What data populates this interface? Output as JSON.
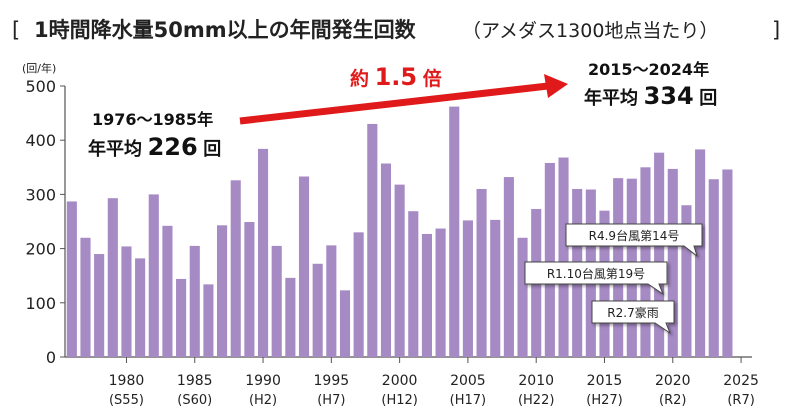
{
  "title": {
    "open_bracket": "[",
    "main": "1時間降水量50mm以上の年間発生回数",
    "sub": "（アメダス1300地点当たり）",
    "close_bracket": "]"
  },
  "chart_data": {
    "type": "bar",
    "title": "1時間降水量50mm以上の年間発生回数（アメダス1300地点当たり）",
    "ylabel": "(回/年)",
    "ylim": [
      0,
      500
    ],
    "yticks": [
      0,
      100,
      200,
      300,
      400,
      500
    ],
    "xlim": [
      1975.5,
      2025.8
    ],
    "xticks": [
      {
        "year": 1980,
        "era": "(S55)"
      },
      {
        "year": 1985,
        "era": "(S60)"
      },
      {
        "year": 1990,
        "era": "(H2)"
      },
      {
        "year": 1995,
        "era": "(H7)"
      },
      {
        "year": 2000,
        "era": "(H12)"
      },
      {
        "year": 2005,
        "era": "(H17)"
      },
      {
        "year": 2010,
        "era": "(H22)"
      },
      {
        "year": 2015,
        "era": "(H27)"
      },
      {
        "year": 2020,
        "era": "(R2)"
      },
      {
        "year": 2025,
        "era": "(R7)"
      }
    ],
    "x": [
      1976,
      1977,
      1978,
      1979,
      1980,
      1981,
      1982,
      1983,
      1984,
      1985,
      1986,
      1987,
      1988,
      1989,
      1990,
      1991,
      1992,
      1993,
      1994,
      1995,
      1996,
      1997,
      1998,
      1999,
      2000,
      2001,
      2002,
      2003,
      2004,
      2005,
      2006,
      2007,
      2008,
      2009,
      2010,
      2011,
      2012,
      2013,
      2014,
      2015,
      2016,
      2017,
      2018,
      2019,
      2020,
      2021,
      2022,
      2023,
      2024
    ],
    "values": [
      287,
      220,
      190,
      293,
      204,
      182,
      300,
      242,
      144,
      205,
      134,
      243,
      326,
      249,
      384,
      205,
      146,
      333,
      172,
      206,
      123,
      230,
      430,
      357,
      318,
      269,
      227,
      237,
      462,
      252,
      310,
      253,
      332,
      220,
      273,
      358,
      368,
      310,
      309,
      270,
      330,
      329,
      350,
      377,
      347,
      280,
      383,
      328,
      346
    ],
    "bar_color": "#a68ac4",
    "grid": false
  },
  "annotations": {
    "left_period": "1976〜1985年",
    "left_avg_prefix": "年平均",
    "left_avg_value": "226",
    "left_avg_suffix": "回",
    "ratio_prefix": "約",
    "ratio_value": "1.5",
    "ratio_suffix": "倍",
    "right_period": "2015〜2024年",
    "right_avg_prefix": "年平均",
    "right_avg_value": "334",
    "right_avg_suffix": "回",
    "callouts": [
      {
        "text": "R4.9台風第14号",
        "year": 2022
      },
      {
        "text": "R1.10台風第19号",
        "year": 2019
      },
      {
        "text": "R2.7豪雨",
        "year": 2020
      }
    ]
  },
  "colors": {
    "bar": "#a68ac4",
    "arrow": "#e01a1a",
    "text": "#222222",
    "axis": "#555555"
  }
}
